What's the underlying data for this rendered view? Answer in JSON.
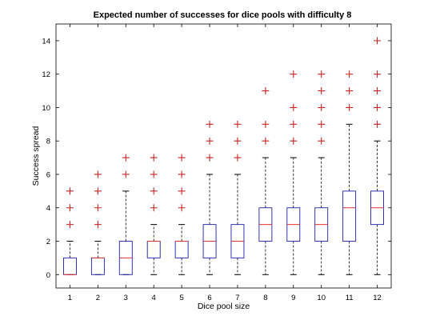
{
  "chart_data": {
    "type": "box",
    "title": "Expected number of successes for dice pools with difficulty 8",
    "xlabel": "Dice pool size",
    "ylabel": "Success spread",
    "xlim": [
      0.5,
      12.5
    ],
    "ylim": [
      -0.8,
      15
    ],
    "yticks": [
      0,
      2,
      4,
      6,
      8,
      10,
      12,
      14
    ],
    "grid": false,
    "colors": {
      "box": "#1f1fa8",
      "median": "#e03030",
      "whisker": "#000000",
      "outlier": "#cc2222",
      "axis": "#000000"
    },
    "boxes": [
      {
        "x": 1,
        "label": "1",
        "q1": 0,
        "median": 0,
        "q3": 1,
        "whisker_low": 0,
        "whisker_high": 2,
        "outliers": [
          3,
          4,
          5
        ]
      },
      {
        "x": 2,
        "label": "2",
        "q1": 0,
        "median": 1,
        "q3": 1,
        "whisker_low": 0,
        "whisker_high": 2,
        "outliers": [
          3,
          4,
          5,
          6
        ]
      },
      {
        "x": 3,
        "label": "3",
        "q1": 0,
        "median": 1,
        "q3": 2,
        "whisker_low": 0,
        "whisker_high": 5,
        "outliers": [
          6,
          7
        ]
      },
      {
        "x": 4,
        "label": "4",
        "q1": 1,
        "median": 2,
        "q3": 2,
        "whisker_low": 0,
        "whisker_high": 3,
        "outliers": [
          4,
          5,
          6,
          7
        ]
      },
      {
        "x": 5,
        "label": "5",
        "q1": 1,
        "median": 2,
        "q3": 2,
        "whisker_low": 0,
        "whisker_high": 3,
        "outliers": [
          4,
          5,
          6,
          7
        ]
      },
      {
        "x": 6,
        "label": "6",
        "q1": 1,
        "median": 2,
        "q3": 3,
        "whisker_low": 0,
        "whisker_high": 6,
        "outliers": [
          7,
          8,
          9
        ]
      },
      {
        "x": 7,
        "label": "7",
        "q1": 1,
        "median": 2,
        "q3": 3,
        "whisker_low": 0,
        "whisker_high": 6,
        "outliers": [
          7,
          8,
          9
        ]
      },
      {
        "x": 8,
        "label": "8",
        "q1": 2,
        "median": 3,
        "q3": 4,
        "whisker_low": 0,
        "whisker_high": 7,
        "outliers": [
          8,
          9,
          11
        ]
      },
      {
        "x": 9,
        "label": "9",
        "q1": 2,
        "median": 3,
        "q3": 4,
        "whisker_low": 0,
        "whisker_high": 7,
        "outliers": [
          8,
          9,
          10,
          12
        ]
      },
      {
        "x": 10,
        "label": "10",
        "q1": 2,
        "median": 3,
        "q3": 4,
        "whisker_low": 0,
        "whisker_high": 7,
        "outliers": [
          8,
          9,
          10,
          11,
          12
        ]
      },
      {
        "x": 11,
        "label": "11",
        "q1": 2,
        "median": 4,
        "q3": 5,
        "whisker_low": 0,
        "whisker_high": 9,
        "outliers": [
          10,
          11,
          12
        ]
      },
      {
        "x": 12,
        "label": "12",
        "q1": 3,
        "median": 4,
        "q3": 5,
        "whisker_low": 0,
        "whisker_high": 8,
        "outliers": [
          9,
          10,
          11,
          12,
          14
        ]
      }
    ]
  }
}
